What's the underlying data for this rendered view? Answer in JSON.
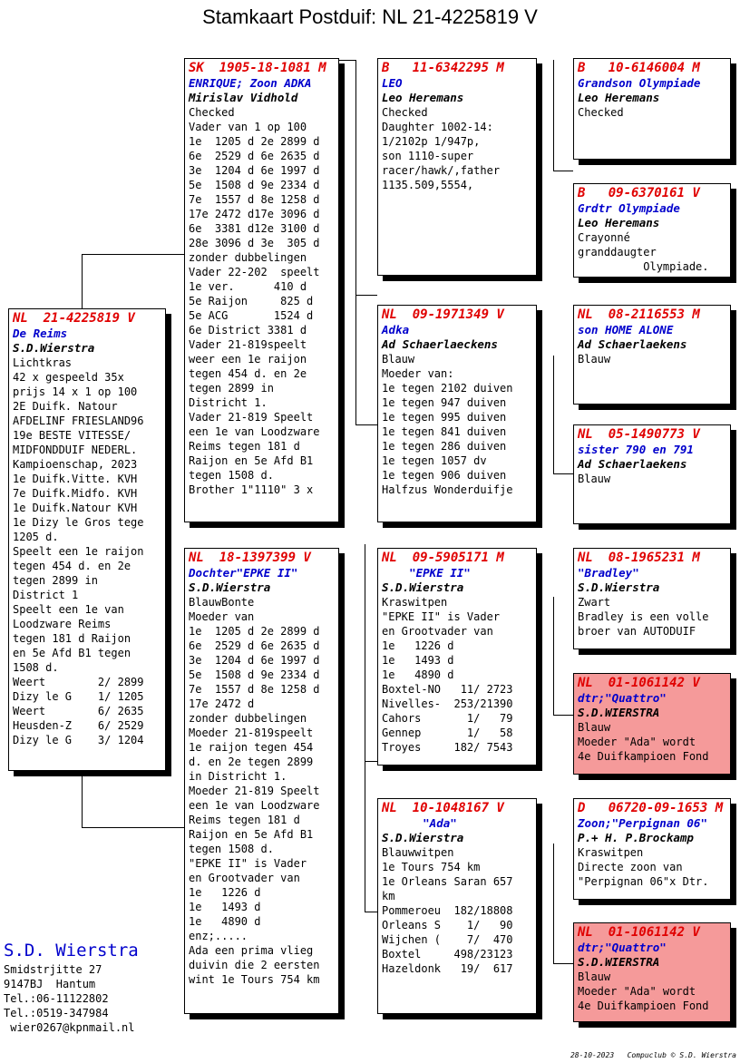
{
  "title": "Stamkaart Postduif: NL  21-4225819 V",
  "subject": {
    "ring": "NL  21-4225819 V",
    "name": "De Reims",
    "breeder": "S.D.Wierstra",
    "lines": [
      "Lichtkras",
      "42 x gespeeld 35x",
      "prijs 14 x 1 op 100",
      "2E Duifk. Natour",
      "AFDELINF FRIESLAND96",
      "19e BESTE VITESSE/",
      "MIDFONDDUIF NEDERL.",
      "Kampioenschap, 2023",
      "1e Duifk.Vitte. KVH",
      "7e Duifk.Midfo. KVH",
      "1e Duifk.Natour KVH",
      "1e Dizy le Gros tege",
      "1205 d.",
      "Speelt een 1e raijon",
      "tegen 454 d. en 2e",
      "tegen 2899 in",
      "District 1",
      "Speelt een 1e van",
      "Loodzware Reims",
      "tegen 181 d Raijon",
      "en 5e Afd B1 tegen",
      "1508 d.",
      "Weert        2/ 2899",
      "Dizy le G    1/ 1205",
      "Weert        6/ 2635",
      "Heusden-Z    6/ 2529",
      "Dizy le G    3/ 1204"
    ]
  },
  "father": {
    "ring": "SK  1905-18-1081 M",
    "name": "ENRIQUE; Zoon ADKA",
    "breeder": "Mirislav Vidhold",
    "lines": [
      "Checked",
      "Vader van 1 op 100",
      "1e  1205 d 2e 2899 d",
      "6e  2529 d 6e 2635 d",
      "3e  1204 d 6e 1997 d",
      "5e  1508 d 9e 2334 d",
      "7e  1557 d 8e 1258 d",
      "17e 2472 d17e 3096 d",
      "6e  3381 d12e 3100 d",
      "28e 3096 d 3e  305 d",
      "zonder dubbelingen",
      "Vader 22-202  speelt",
      "1e ver.      410 d",
      "5e Raijon     825 d",
      "5e ACG       1524 d",
      "6e District 3381 d",
      "Vader 21-819speelt",
      "weer een 1e raijon",
      "tegen 454 d. en 2e",
      "tegen 2899 in",
      "Districht 1.",
      "Vader 21-819 Speelt",
      "een 1e van Loodzware",
      "Reims tegen 181 d",
      "Raijon en 5e Afd B1",
      "tegen 1508 d.",
      "Brother 1\"1110\" 3 x"
    ]
  },
  "mother": {
    "ring": "NL  18-1397399 V",
    "name": "Dochter\"EPKE II\"",
    "breeder": "S.D.Wierstra",
    "lines": [
      "BlauwBonte",
      "Moeder van",
      "1e  1205 d 2e 2899 d",
      "6e  2529 d 6e 2635 d",
      "3e  1204 d 6e 1997 d",
      "5e  1508 d 9e 2334 d",
      "7e  1557 d 8e 1258 d",
      "17e 2472 d",
      "zonder dubbelingen",
      "Moeder 21-819speelt",
      "1e raijon tegen 454",
      "d. en 2e tegen 2899",
      "in Districht 1.",
      "Moeder 21-819 Speelt",
      "een 1e van Loodzware",
      "Reims tegen 181 d",
      "Raijon en 5e Afd B1",
      "tegen 1508 d.",
      "\"EPKE II\" is Vader",
      "en Grootvader van",
      "1e   1226 d",
      "1e   1493 d",
      "1e   4890 d",
      "enz;.....",
      "Ada een prima vlieg",
      "duivin die 2 eersten",
      "wint 1e Tours 754 km"
    ]
  },
  "ff": {
    "ring": "B   11-6342295 M",
    "name": "LEO",
    "breeder": "Leo Heremans",
    "lines": [
      "Checked",
      "Daughter 1002-14:",
      "1/2102p 1/947p,",
      "son 1110-super",
      "racer/hawk/,father",
      "1135.509,5554,"
    ]
  },
  "fm": {
    "ring": "NL  09-1971349 V",
    "name": "Adka",
    "breeder": "Ad Schaerlaeckens",
    "lines": [
      "Blauw",
      "Moeder van:",
      "1e tegen 2102 duiven",
      "1e tegen 947 duiven",
      "1e tegen 995 duiven",
      "1e tegen 841 duiven",
      "1e tegen 286 duiven",
      "1e tegen 1057 dv",
      "1e tegen 906 duiven",
      "",
      "Halfzus Wonderduifje"
    ]
  },
  "mf": {
    "ring": "NL  09-5905171 M",
    "name": "    \"EPKE II\"",
    "breeder": "S.D.Wierstra",
    "lines": [
      "Kraswitpen",
      "\"EPKE II\" is Vader",
      "en Grootvader van",
      "1e   1226 d",
      "1e   1493 d",
      "1e   4890 d",
      "Boxtel-NO   11/ 2723",
      "Nivelles-  253/21390",
      "Cahors       1/   79",
      "Gennep       1/   58",
      "Troyes     182/ 7543"
    ]
  },
  "mm": {
    "ring": "NL  10-1048167 V",
    "name": "      \"Ada\"",
    "breeder": "S.D.Wierstra",
    "lines": [
      "Blauwwitpen",
      "1e Tours 754 km",
      "1e Orleans Saran 657",
      "km",
      "",
      "",
      "Pommeroeu  182/18808",
      "Orleans S    1/   90",
      "Wijchen (    7/  470",
      "Boxtel     498/23123",
      "Hazeldonk   19/  617"
    ]
  },
  "fff": {
    "ring": "B   10-6146004 M",
    "name": "Grandson Olympiade",
    "breeder": "Leo Heremans",
    "lines": [
      "Checked"
    ]
  },
  "ffm": {
    "ring": "B   09-6370161 V",
    "name": "Grdtr Olympiade",
    "breeder": "Leo Heremans",
    "lines": [
      "Crayonné",
      "granddaugter",
      "          Olympiade."
    ]
  },
  "fmf": {
    "ring": "NL  08-2116553 M",
    "name": "son HOME ALONE",
    "breeder": "Ad Schaerlaekens",
    "lines": [
      "Blauw"
    ]
  },
  "fmm": {
    "ring": "NL  05-1490773 V",
    "name": "sister 790 en 791",
    "breeder": "Ad Schaerlaekens",
    "lines": [
      "Blauw"
    ]
  },
  "mff": {
    "ring": "NL  08-1965231 M",
    "name": "\"Bradley\"",
    "breeder": "S.D.Wierstra",
    "lines": [
      "Zwart",
      "Bradley is een volle",
      "broer van AUTODUIF"
    ]
  },
  "mfm": {
    "ring": "NL  01-1061142 V",
    "name": "dtr;\"Quattro\"",
    "breeder": "S.D.WIERSTRA",
    "lines": [
      "Blauw",
      "Moeder \"Ada\" wordt",
      "4e Duifkampioen Fond"
    ]
  },
  "mmf": {
    "ring": "D   06720-09-1653 M",
    "name": "Zoon;\"Perpignan 06\"",
    "breeder": "P.+ H. P.Brockamp",
    "lines": [
      "Kraswitpen",
      "Directe zoon van",
      "\"Perpignan 06\"x Dtr."
    ]
  },
  "mmm": {
    "ring": "NL  01-1061142 V",
    "name": "dtr;\"Quattro\"",
    "breeder": "S.D.WIERSTRA",
    "lines": [
      "Blauw",
      "Moeder \"Ada\" wordt",
      "4e Duifkampioen Fond"
    ]
  },
  "owner": {
    "name": "S.D. Wierstra",
    "lines": [
      "Smidstrjitte 27",
      "9147BJ  Hantum",
      "Tel.:06-11122802",
      "Tel.:0519-347984",
      " wier0267@kpnmail.nl"
    ]
  },
  "footer": "28-10-2023   Compuclub © S.D. Wierstra",
  "colors": {
    "ring": "#e00000",
    "name": "#0000cc",
    "highlight": "#f59a9a"
  }
}
